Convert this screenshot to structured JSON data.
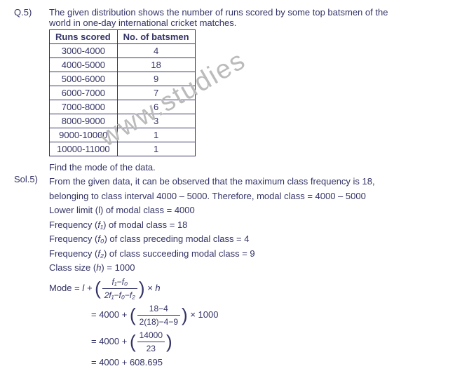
{
  "question": {
    "label": "Q.5)",
    "text_line1": "The given distribution shows the number of runs scored by some top batsmen of the",
    "text_line2": "world in one-day international cricket matches.",
    "find_text": "Find the mode of the data."
  },
  "table": {
    "headers": {
      "col1": "Runs scored",
      "col2": "No. of batsmen"
    },
    "rows": [
      {
        "runs": "3000-4000",
        "batsmen": "4"
      },
      {
        "runs": "4000-5000",
        "batsmen": "18"
      },
      {
        "runs": "5000-6000",
        "batsmen": "9"
      },
      {
        "runs": "6000-7000",
        "batsmen": "7"
      },
      {
        "runs": "7000-8000",
        "batsmen": "6"
      },
      {
        "runs": "8000-9000",
        "batsmen": "3"
      },
      {
        "runs": "9000-10000",
        "batsmen": "1"
      },
      {
        "runs": "10000-11000",
        "batsmen": "1"
      }
    ]
  },
  "solution": {
    "label": "Sol.5)",
    "line1": "From the given data, it can be observed that the maximum class frequency is 18,",
    "line2": "belonging to class interval 4000 – 5000. Therefore, modal class = 4000 – 5000",
    "line3_prefix": "Lower limit (l) of modal class = ",
    "line3_val": "4000",
    "line4_prefix": "Frequency (",
    "line4_var": "f₁",
    "line4_suffix": ") of modal class = 18",
    "line5_prefix": "Frequency (",
    "line5_var": "f₀",
    "line5_suffix": ") of class preceding modal class = 4",
    "line6_prefix": "Frequency (",
    "line6_var": "f₂",
    "line6_suffix": ") of class succeeding modal class = 9",
    "line7_prefix": "Class size (",
    "line7_var": "h",
    "line7_suffix": ")  =  1000",
    "formula": {
      "lhs": "Mode = ",
      "l_plus": "l + ",
      "num1": "f₁−f₀",
      "den1": "2f₁−f₀−f₂",
      "times_h": " × h"
    },
    "step2": {
      "prefix": " = 4000 + ",
      "num": "18−4",
      "den": "2(18)−4−9",
      "suffix": " × 1000"
    },
    "step3": {
      "prefix": " = 4000 + ",
      "num": "14000",
      "den": "23"
    },
    "step4": " = 4000 + 608.695"
  },
  "watermark": "www.studies"
}
